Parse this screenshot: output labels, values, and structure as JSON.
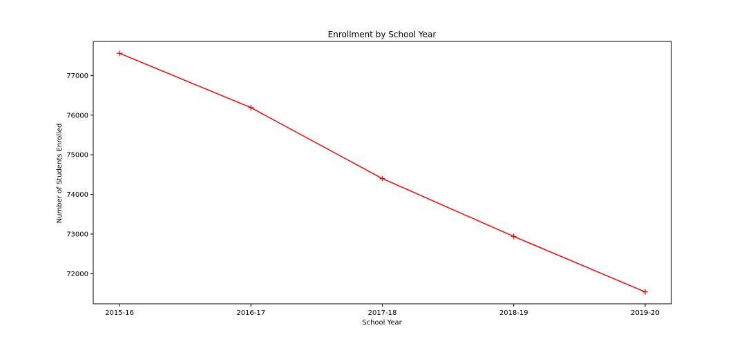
{
  "chart_data": {
    "type": "line",
    "title": "Enrollment by School Year",
    "xlabel": "School Year",
    "ylabel": "Number of Students Enrolled",
    "categories": [
      "2015-16",
      "2016-17",
      "2017-18",
      "2018-19",
      "2019-20"
    ],
    "series": [
      {
        "values": [
          77560,
          76190,
          74400,
          72940,
          71540
        ],
        "color": "#ff0000",
        "marker": "plus"
      }
    ],
    "yticks": [
      72000,
      73000,
      74000,
      75000,
      76000,
      77000
    ],
    "ylim": [
      71240,
      77860
    ],
    "grid": false,
    "legend": "none"
  }
}
